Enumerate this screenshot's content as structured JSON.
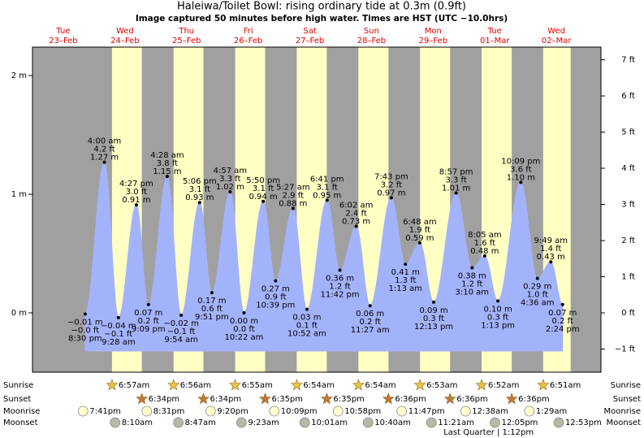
{
  "chart_data": {
    "type": "area",
    "title": "Haleiwa/Toilet Bowl: rising  ordinary tide at 0.3m (0.9ft)",
    "subtitle": "Image captured 50 minutes before high water. Times are HST (UTC −10.0hrs)",
    "color": "#a3b3fb",
    "ylim": [
      -0.5,
      2.24
    ],
    "yticks": [
      {
        "value": 0,
        "label": "0 m"
      },
      {
        "value": 1,
        "label": "1 m"
      },
      {
        "value": 2,
        "label": "2 m"
      }
    ],
    "y2lim": [
      -1.64,
      7.35
    ],
    "y2ticks": [
      {
        "value": -1,
        "label": "−1 ft"
      },
      {
        "value": 0,
        "label": "0 ft"
      },
      {
        "value": 1,
        "label": "1 ft"
      },
      {
        "value": 2,
        "label": "2 ft"
      },
      {
        "value": 3,
        "label": "3 ft"
      },
      {
        "value": 4,
        "label": "4 ft"
      },
      {
        "value": 5,
        "label": "5 ft"
      },
      {
        "value": 6,
        "label": "6 ft"
      },
      {
        "value": 7,
        "label": "7 ft"
      }
    ],
    "rows": {
      "sunrise": "Sunrise",
      "sunset": "Sunset",
      "moonrise": "Moonrise",
      "moonset": "Moonset"
    },
    "days": [
      {
        "dow": "Tue",
        "date": "23–Feb",
        "moonrise": "7:41pm",
        "tides": [
          {
            "time": "8:30 pm",
            "value": -0.01,
            "label_m": "−0.01 m",
            "label_ft": "−0.0 ft"
          }
        ]
      },
      {
        "dow": "Wed",
        "date": "24–Feb",
        "sunrise": "6:57am",
        "sunset": "6:34pm",
        "moonrise": "8:31pm",
        "moonset": "8:10am",
        "tides": [
          {
            "time": "4:00 am",
            "value": 1.27,
            "label_m": "1.27 m",
            "label_ft": "4.2 ft"
          },
          {
            "time": "9:28 am",
            "value": -0.04,
            "label_m": "−0.04 m",
            "label_ft": "−0.1 ft"
          },
          {
            "time": "4:27 pm",
            "value": 0.91,
            "label_m": "0.91 m",
            "label_ft": "3.0 ft"
          },
          {
            "time": "9:09 pm",
            "value": 0.07,
            "label_m": "0.07 m",
            "label_ft": "0.2 ft"
          }
        ]
      },
      {
        "dow": "Thu",
        "date": "25–Feb",
        "sunrise": "6:56am",
        "sunset": "6:34pm",
        "moonrise": "9:20pm",
        "moonset": "8:47am",
        "tides": [
          {
            "time": "4:28 am",
            "value": 1.15,
            "label_m": "1.15 m",
            "label_ft": "3.8 ft"
          },
          {
            "time": "9:54 am",
            "value": -0.02,
            "label_m": "−0.02 m",
            "label_ft": "−0.1 ft"
          },
          {
            "time": "5:06 pm",
            "value": 0.93,
            "label_m": "0.93 m",
            "label_ft": "3.1 ft"
          },
          {
            "time": "9:51 pm",
            "value": 0.17,
            "label_m": "0.17 m",
            "label_ft": "0.6 ft"
          }
        ]
      },
      {
        "dow": "Fri",
        "date": "26–Feb",
        "sunrise": "6:55am",
        "sunset": "6:35pm",
        "moonrise": "10:09pm",
        "moonset": "9:23am",
        "tides": [
          {
            "time": "4:57 am",
            "value": 1.02,
            "label_m": "1.02 m",
            "label_ft": "3.3 ft"
          },
          {
            "time": "10:22 am",
            "value": 0.0,
            "label_m": "0.00 m",
            "label_ft": "0.0 ft"
          },
          {
            "time": "5:50 pm",
            "value": 0.94,
            "label_m": "0.94 m",
            "label_ft": "3.1 ft"
          },
          {
            "time": "10:39 pm",
            "value": 0.27,
            "label_m": "0.27 m",
            "label_ft": "0.9 ft"
          }
        ]
      },
      {
        "dow": "Sat",
        "date": "27–Feb",
        "sunrise": "6:54am",
        "sunset": "6:35pm",
        "moonrise": "10:58pm",
        "moonset": "10:01am",
        "tides": [
          {
            "time": "5:27 am",
            "value": 0.88,
            "label_m": "0.88 m",
            "label_ft": "2.9 ft"
          },
          {
            "time": "10:52 am",
            "value": 0.03,
            "label_m": "0.03 m",
            "label_ft": "0.1 ft"
          },
          {
            "time": "6:41 pm",
            "value": 0.95,
            "label_m": "0.95 m",
            "label_ft": "3.1 ft"
          },
          {
            "time": "11:42 pm",
            "value": 0.36,
            "label_m": "0.36 m",
            "label_ft": "1.2 ft"
          }
        ]
      },
      {
        "dow": "Sun",
        "date": "28–Feb",
        "sunrise": "6:54am",
        "sunset": "6:36pm",
        "moonrise": "11:47pm",
        "moonset": "10:40am",
        "tides": [
          {
            "time": "6:02 am",
            "value": 0.73,
            "label_m": "0.73 m",
            "label_ft": "2.4 ft"
          },
          {
            "time": "11:27 am",
            "value": 0.06,
            "label_m": "0.06 m",
            "label_ft": "0.2 ft"
          },
          {
            "time": "7:43 pm",
            "value": 0.97,
            "label_m": "0.97 m",
            "label_ft": "3.2 ft"
          }
        ]
      },
      {
        "dow": "Mon",
        "date": "29–Feb",
        "sunrise": "6:53am",
        "sunset": "6:36pm",
        "moonset": "11:21am",
        "tides": [
          {
            "time": "1:13 am",
            "value": 0.41,
            "label_m": "0.41 m",
            "label_ft": "1.3 ft"
          },
          {
            "time": "6:48 am",
            "value": 0.59,
            "label_m": "0.59 m",
            "label_ft": "1.9 ft"
          },
          {
            "time": "12:13 pm",
            "value": 0.09,
            "label_m": "0.09 m",
            "label_ft": "0.3 ft"
          },
          {
            "time": "8:57 pm",
            "value": 1.01,
            "label_m": "1.01 m",
            "label_ft": "3.3 ft"
          }
        ]
      },
      {
        "dow": "Tue",
        "date": "01–Mar",
        "sunrise": "6:52am",
        "sunset": "6:36pm",
        "moonrise": "12:38am",
        "moonset": "12:05pm",
        "moon_phase": "Last Quarter | 1:12pm",
        "tides": [
          {
            "time": "3:10 am",
            "value": 0.38,
            "label_m": "0.38 m",
            "label_ft": "1.2 ft"
          },
          {
            "time": "8:05 am",
            "value": 0.48,
            "label_m": "0.48 m",
            "label_ft": "1.6 ft"
          },
          {
            "time": "1:13 pm",
            "value": 0.1,
            "label_m": "0.10 m",
            "label_ft": "0.3 ft"
          },
          {
            "time": "10:09 pm",
            "value": 1.1,
            "label_m": "1.10 m",
            "label_ft": "3.6 ft"
          }
        ]
      },
      {
        "dow": "Wed",
        "date": "02–Mar",
        "sunrise": "6:51am",
        "moonrise": "1:29am",
        "moonset": "12:53pm",
        "tides": [
          {
            "time": "4:36 am",
            "value": 0.29,
            "label_m": "0.29 m",
            "label_ft": "1.0 ft"
          },
          {
            "time": "9:49 am",
            "value": 0.43,
            "label_m": "0.43 m",
            "label_ft": "1.4 ft"
          },
          {
            "time": "2:24 pm",
            "value": 0.07,
            "label_m": "0.07 m",
            "label_ft": "0.2 ft"
          }
        ]
      }
    ]
  }
}
